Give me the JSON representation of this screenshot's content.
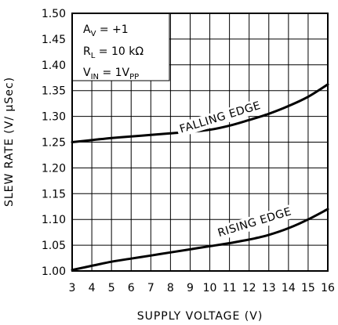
{
  "chart_data": {
    "type": "line",
    "xlabel": "SUPPLY VOLTAGE (V)",
    "ylabel": "SLEW RATE (V/ μSec)",
    "xlim": [
      3,
      16
    ],
    "ylim": [
      1.0,
      1.5
    ],
    "x_ticks": [
      "3",
      "4",
      "5",
      "6",
      "7",
      "8",
      "9",
      "10",
      "11",
      "12",
      "13",
      "14",
      "15",
      "16"
    ],
    "y_ticks": [
      "1.00",
      "1.05",
      "1.10",
      "1.15",
      "1.20",
      "1.25",
      "1.30",
      "1.35",
      "1.40",
      "1.45",
      "1.50"
    ],
    "grid": true,
    "conditions": [
      {
        "sym": "A",
        "sub": "V",
        "rest": " = +1"
      },
      {
        "sym": "R",
        "sub": "L",
        "rest": " = 10 kΩ"
      },
      {
        "sym": "V",
        "sub": "IN",
        "rest": " = 1V",
        "rest_sub": "PP"
      }
    ],
    "series": [
      {
        "name": "FALLING EDGE",
        "x": [
          3,
          4,
          5,
          6,
          7,
          8,
          9,
          10,
          11,
          12,
          13,
          14,
          15,
          16
        ],
        "y": [
          1.25,
          1.254,
          1.258,
          1.261,
          1.264,
          1.267,
          1.27,
          1.274,
          1.282,
          1.293,
          1.305,
          1.32,
          1.338,
          1.362
        ]
      },
      {
        "name": "RISING EDGE",
        "x": [
          3,
          4,
          5,
          6,
          7,
          8,
          9,
          10,
          11,
          12,
          13,
          14,
          15,
          16
        ],
        "y": [
          1.002,
          1.01,
          1.018,
          1.024,
          1.03,
          1.036,
          1.042,
          1.048,
          1.054,
          1.061,
          1.07,
          1.083,
          1.1,
          1.12
        ]
      }
    ]
  }
}
